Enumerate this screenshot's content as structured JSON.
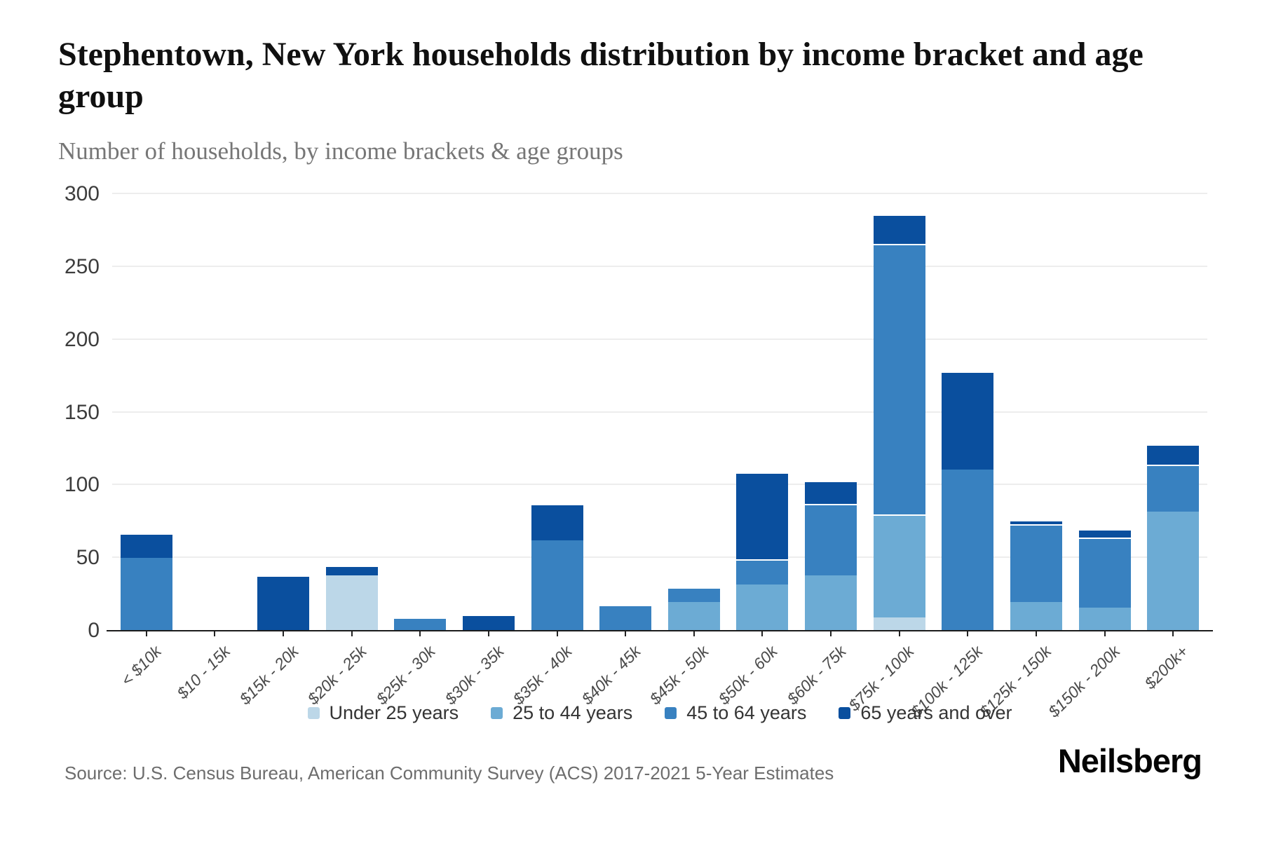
{
  "header": {
    "title": "Stephentown, New York households distribution by income bracket and age group",
    "subtitle": "Number of households, by income brackets & age groups"
  },
  "chart_data": {
    "type": "bar",
    "stacked": true,
    "title": "Stephentown, New York households distribution by income bracket and age group",
    "subtitle": "Number of households, by income brackets & age groups",
    "xlabel": "",
    "ylabel": "Number of households",
    "ylim": [
      0,
      300
    ],
    "yticks": [
      0,
      50,
      100,
      150,
      200,
      250,
      300
    ],
    "grid": true,
    "legend_position": "bottom",
    "categories": [
      "< $10k",
      "$10 - 15k",
      "$15k - 20k",
      "$20k - 25k",
      "$25k - 30k",
      "$30k - 35k",
      "$35k - 40k",
      "$40k - 45k",
      "$45k - 50k",
      "$50k - 60k",
      "$60k - 75k",
      "$75k - 100k",
      "$100k - 125k",
      "$125k - 150k",
      "$150k - 200k",
      "$200k+"
    ],
    "series": [
      {
        "name": "Under 25 years",
        "color": "#bcd7e8",
        "values": [
          0,
          0,
          0,
          38,
          0,
          0,
          0,
          0,
          0,
          0,
          0,
          9,
          0,
          0,
          0,
          0
        ]
      },
      {
        "name": "25 to 44 years",
        "color": "#6cabd4",
        "values": [
          0,
          0,
          0,
          0,
          0,
          0,
          0,
          0,
          20,
          32,
          38,
          71,
          0,
          20,
          16,
          82
        ]
      },
      {
        "name": "45 to 64 years",
        "color": "#3881c0",
        "values": [
          50,
          0,
          0,
          0,
          8,
          0,
          62,
          17,
          10,
          17,
          49,
          186,
          111,
          53,
          48,
          32
        ]
      },
      {
        "name": "65 years and over",
        "color": "#0a4f9e",
        "values": [
          17,
          0,
          37,
          7,
          0,
          10,
          25,
          0,
          0,
          60,
          16,
          20,
          67,
          3,
          6,
          14
        ]
      }
    ],
    "totals": [
      67,
      0,
      37,
      45,
      8,
      10,
      87,
      17,
      30,
      109,
      103,
      286,
      178,
      76,
      70,
      128
    ]
  },
  "source": {
    "text": "Source: U.S. Census Bureau, American Community Survey (ACS) 2017-2021 5-Year Estimates"
  },
  "branding": {
    "logo_text": "Neilsberg"
  }
}
